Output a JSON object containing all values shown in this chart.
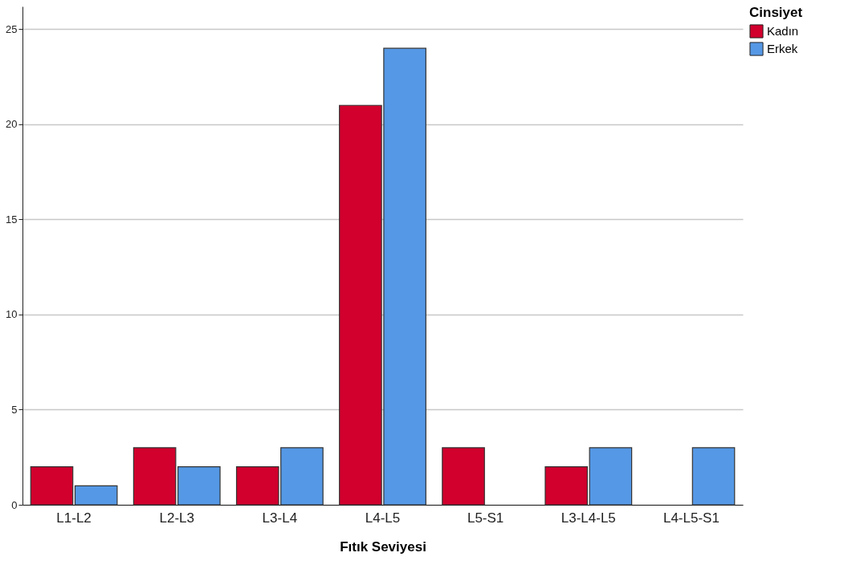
{
  "chart_data": {
    "type": "bar",
    "xlabel": "Fıtık Seviyesi",
    "legend_title": "Cinsiyet",
    "categories": [
      "L1-L2",
      "L2-L3",
      "L3-L4",
      "L4-L5",
      "L5-S1",
      "L3-L4-L5",
      "L4-L5-S1"
    ],
    "series": [
      {
        "name": "Kadın",
        "color": "#d1002d",
        "values": [
          2,
          3,
          2,
          21,
          3,
          2,
          null
        ]
      },
      {
        "name": "Erkek",
        "color": "#5598e5",
        "values": [
          1,
          2,
          3,
          24,
          null,
          3,
          3
        ]
      }
    ],
    "ylim": [
      0,
      26.2
    ],
    "yticks": [
      0,
      5,
      10,
      15,
      20,
      25
    ],
    "grid": "y",
    "legend": "top right"
  }
}
